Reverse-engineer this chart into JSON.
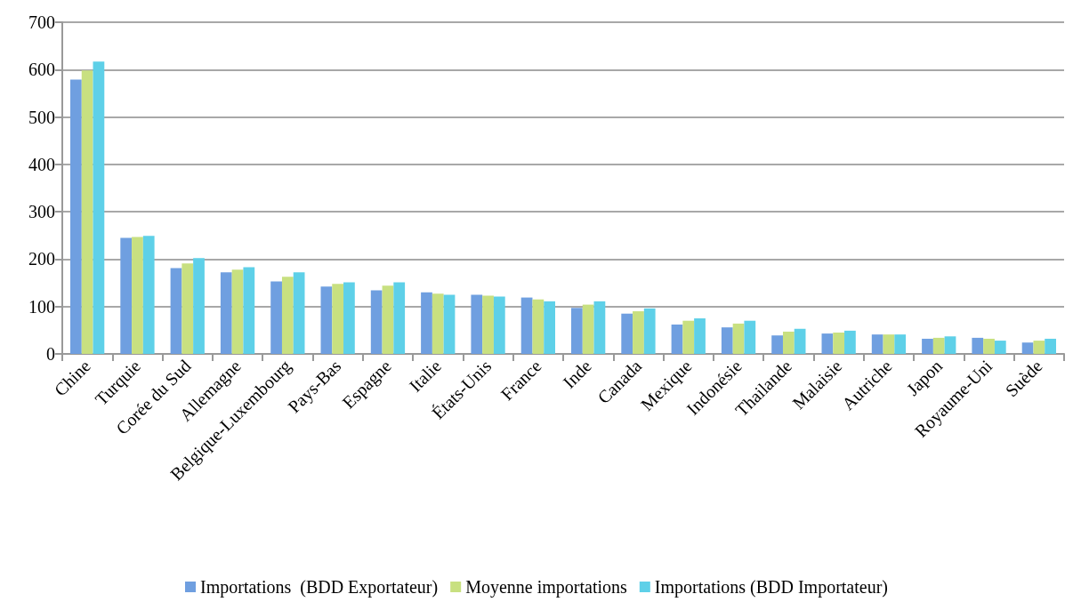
{
  "chart_data": {
    "type": "bar",
    "categories": [
      "Chine",
      "Turquie",
      "Corée du Sud",
      "Allemagne",
      "Belgique-Luxembourg",
      "Pays-Bas",
      "Espagne",
      "Italie",
      "États-Unis",
      "France",
      "Inde",
      "Canada",
      "Mexique",
      "Indonésie",
      "Thailande",
      "Malaisie",
      "Autriche",
      "Japon",
      "Royaume-Uni",
      "Suède"
    ],
    "series": [
      {
        "name": "Importations  (BDD Exportateur)",
        "color": "#6f9fe0",
        "values": [
          579,
          245,
          181,
          172,
          153,
          142,
          134,
          130,
          125,
          119,
          97,
          85,
          62,
          56,
          39,
          43,
          41,
          32,
          34,
          24
        ]
      },
      {
        "name": "Moyenne importations",
        "color": "#c8e080",
        "values": [
          598,
          247,
          191,
          178,
          163,
          148,
          144,
          127,
          123,
          115,
          104,
          90,
          70,
          64,
          47,
          45,
          41,
          34,
          32,
          28
        ]
      },
      {
        "name": "Importations (BDD Importateur)",
        "color": "#5ed0e8",
        "values": [
          617,
          249,
          202,
          183,
          172,
          151,
          151,
          125,
          121,
          111,
          111,
          96,
          75,
          70,
          53,
          49,
          41,
          37,
          28,
          32
        ]
      }
    ],
    "ylim": [
      0,
      700
    ],
    "yticks": [
      0,
      100,
      200,
      300,
      400,
      500,
      600,
      700
    ],
    "grid": "y",
    "legend": "bottom"
  }
}
